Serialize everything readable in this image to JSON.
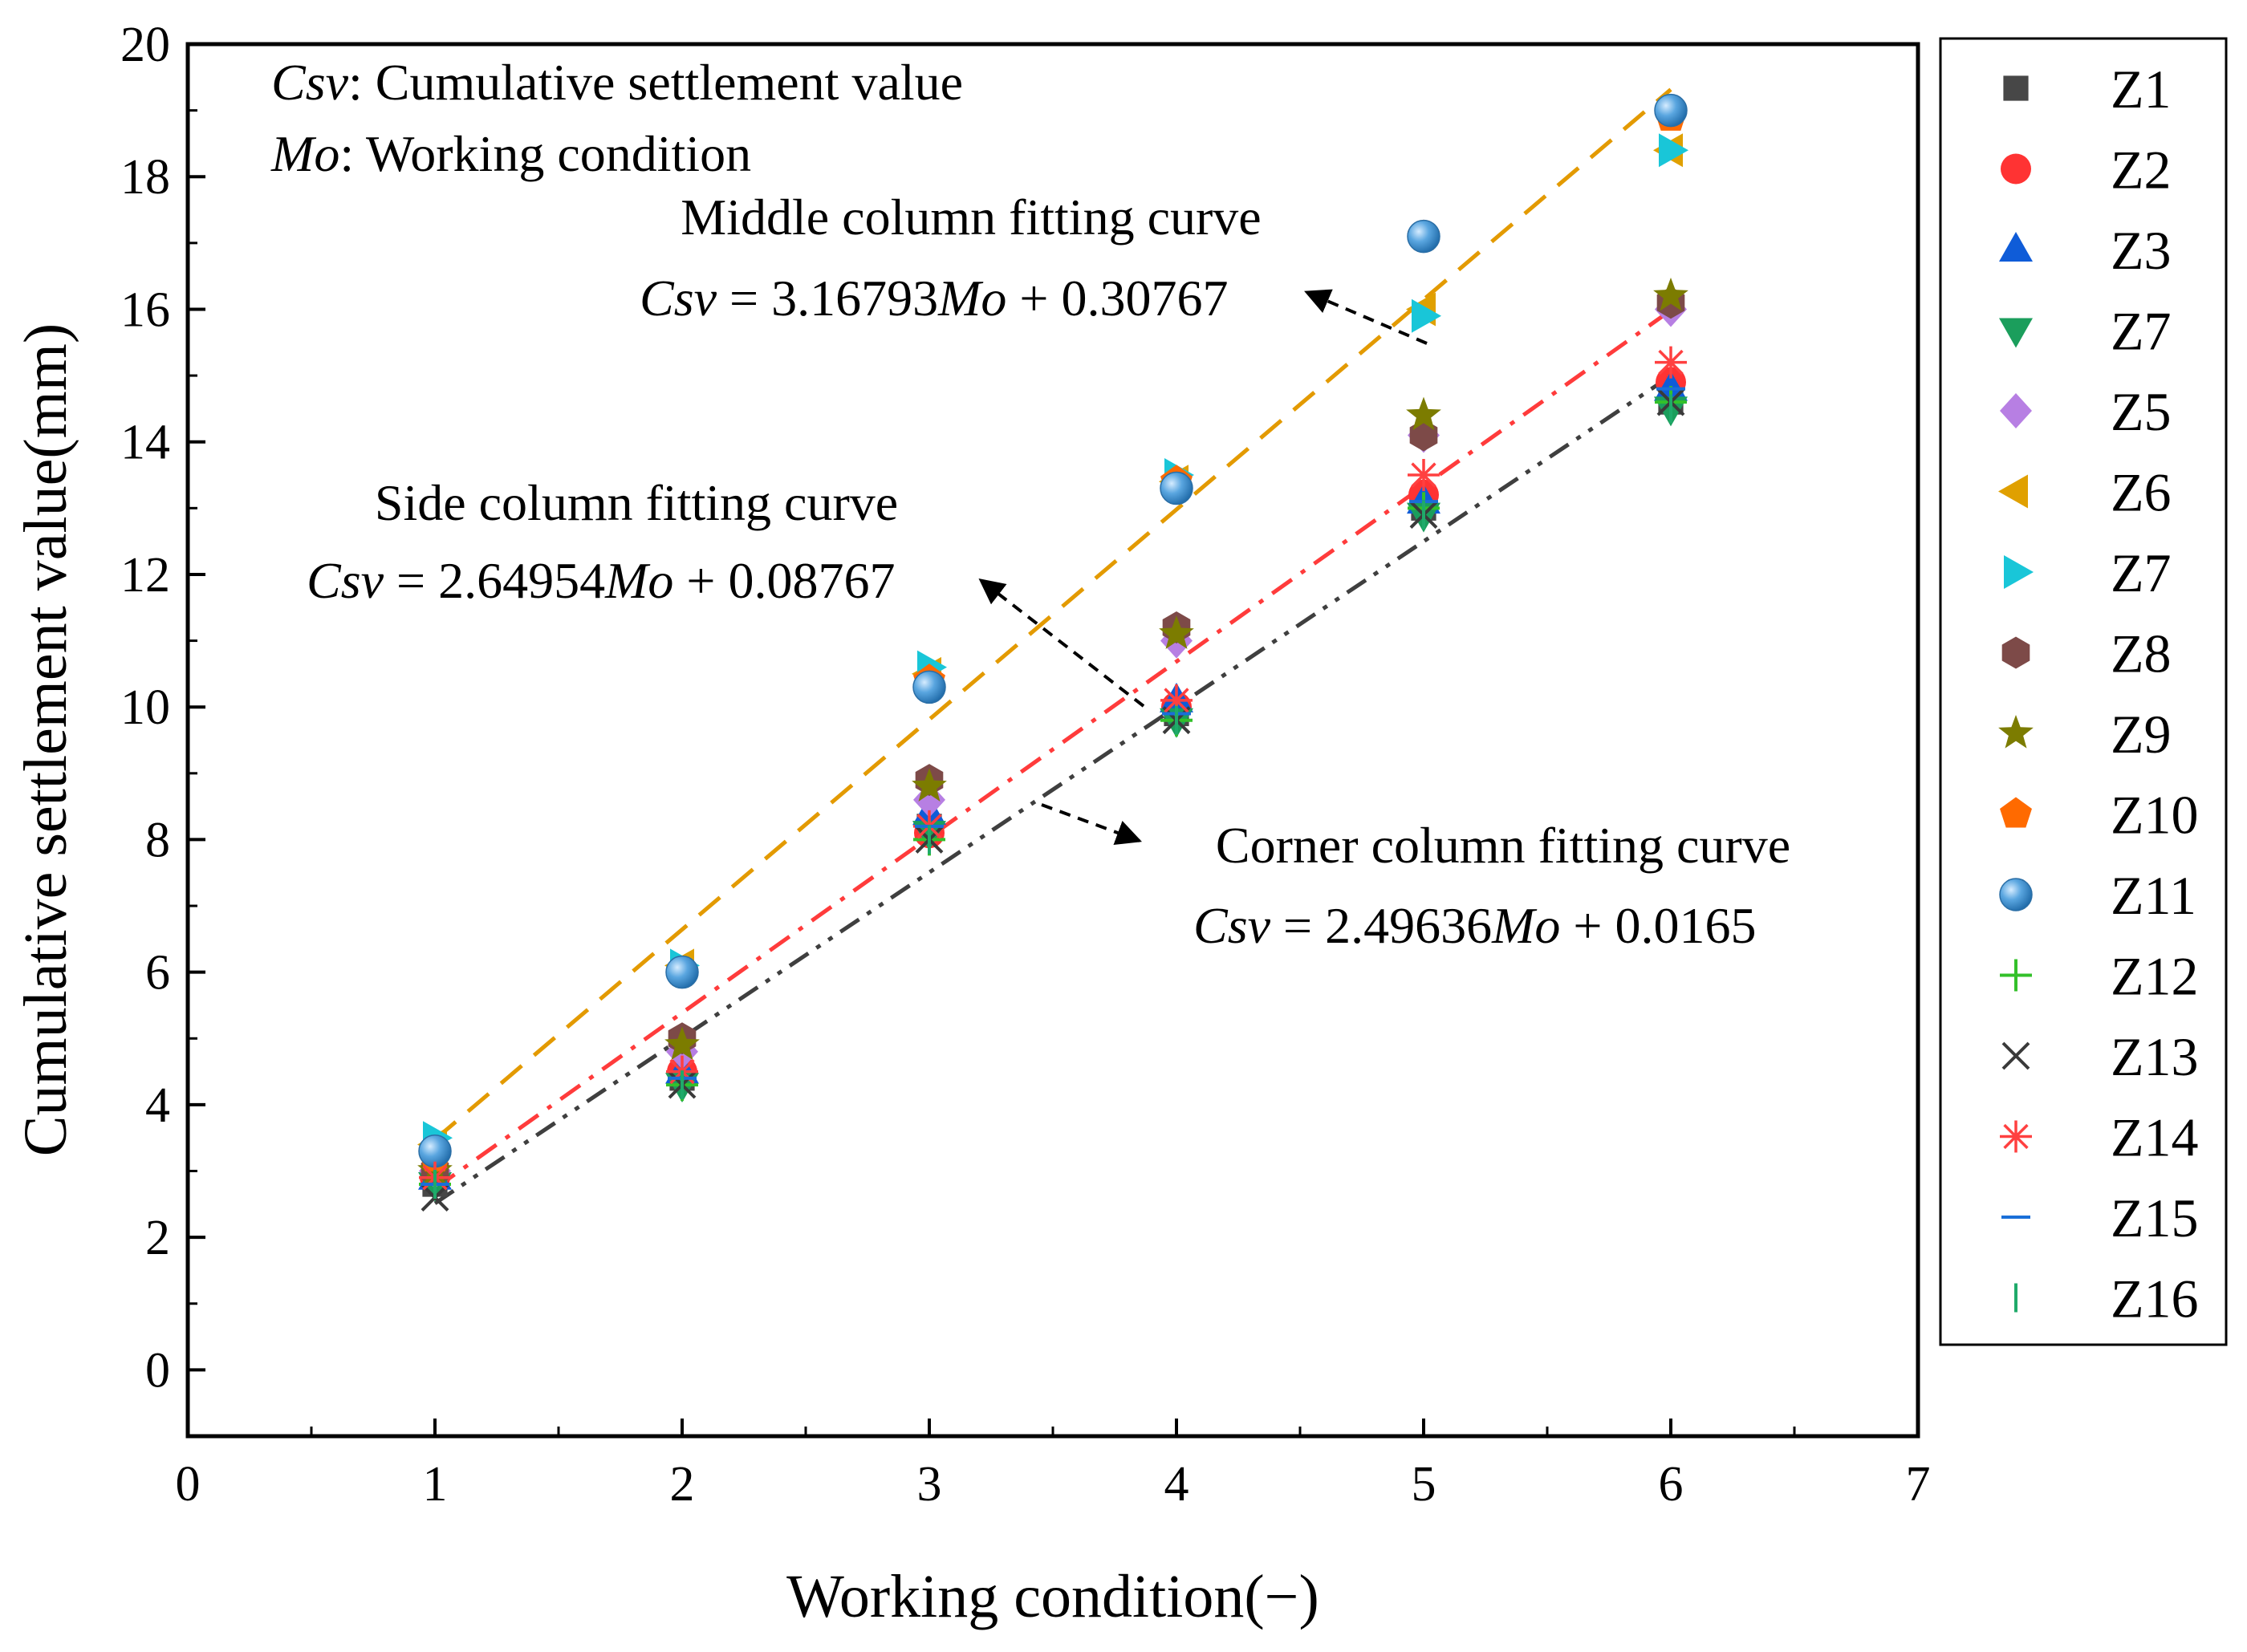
{
  "chart_data": {
    "type": "scatter",
    "title": "",
    "xlabel": "Working condition(−)",
    "ylabel": "Cumulative settlement value(mm)",
    "xlim": [
      0,
      7
    ],
    "ylim": [
      -1,
      20
    ],
    "x_ticks": [
      0,
      1,
      2,
      3,
      4,
      5,
      6,
      7
    ],
    "y_ticks": [
      0,
      2,
      4,
      6,
      8,
      10,
      12,
      14,
      16,
      18,
      20
    ],
    "x_tick_labels": [
      "0",
      "1",
      "2",
      "3",
      "4",
      "5",
      "6",
      "7"
    ],
    "y_tick_labels": [
      "0",
      "2",
      "4",
      "6",
      "8",
      "10",
      "12",
      "14",
      "16",
      "18",
      "20"
    ],
    "grid": false,
    "legend_position": "outside-right",
    "x": [
      1,
      2,
      3,
      4,
      5,
      6
    ],
    "series": [
      {
        "name": "Z1",
        "marker": "square",
        "color": "#474747",
        "values": [
          2.8,
          4.4,
          8.2,
          9.9,
          13.0,
          14.6
        ]
      },
      {
        "name": "Z2",
        "marker": "circle",
        "color": "#ff3333",
        "values": [
          2.9,
          4.5,
          8.1,
          10.0,
          13.2,
          14.9
        ]
      },
      {
        "name": "Z3",
        "marker": "triangle-up",
        "color": "#0f5cd8",
        "values": [
          2.9,
          4.5,
          8.4,
          10.1,
          13.1,
          14.8
        ]
      },
      {
        "name": "Z7",
        "marker": "triangle-down",
        "color": "#1b9e5c",
        "values": [
          2.8,
          4.3,
          8.1,
          9.8,
          12.9,
          14.5
        ]
      },
      {
        "name": "Z5",
        "marker": "diamond",
        "color": "#b77fe3",
        "values": [
          3.0,
          4.8,
          8.6,
          11.0,
          14.1,
          16.0
        ]
      },
      {
        "name": "Z6",
        "marker": "triangle-left",
        "color": "#e0a000",
        "values": [
          3.4,
          6.1,
          10.5,
          13.4,
          16.0,
          18.4
        ]
      },
      {
        "name": "Z7",
        "marker": "triangle-right",
        "color": "#19c6d8",
        "values": [
          3.5,
          6.1,
          10.6,
          13.5,
          15.9,
          18.4
        ]
      },
      {
        "name": "Z8",
        "marker": "hexagon",
        "color": "#7d4a48",
        "values": [
          3.0,
          5.0,
          8.9,
          11.2,
          14.1,
          16.1
        ]
      },
      {
        "name": "Z9",
        "marker": "star",
        "color": "#7c7c00",
        "values": [
          3.0,
          4.9,
          8.8,
          11.1,
          14.4,
          16.2
        ]
      },
      {
        "name": "Z10",
        "marker": "pentagon",
        "color": "#ff6a00",
        "values": [
          3.2,
          6.0,
          10.4,
          13.4,
          17.1,
          18.9
        ]
      },
      {
        "name": "Z11",
        "marker": "sphere",
        "color": "#3b8fd0",
        "values": [
          3.3,
          6.0,
          10.3,
          13.3,
          17.1,
          19.0
        ]
      },
      {
        "name": "Z12",
        "marker": "plus",
        "color": "#33c02a",
        "values": [
          2.8,
          4.3,
          8.0,
          9.8,
          13.0,
          14.6
        ]
      },
      {
        "name": "Z13",
        "marker": "cross",
        "color": "#3a3a3a",
        "values": [
          2.6,
          4.3,
          8.0,
          9.8,
          12.9,
          14.6
        ]
      },
      {
        "name": "Z14",
        "marker": "asterisk",
        "color": "#ff4040",
        "values": [
          2.9,
          4.5,
          8.2,
          10.1,
          13.5,
          15.2
        ]
      },
      {
        "name": "Z15",
        "marker": "hline",
        "color": "#1a6fd8",
        "values": [
          2.8,
          4.4,
          8.2,
          9.9,
          13.1,
          14.8
        ]
      },
      {
        "name": "Z16",
        "marker": "vline",
        "color": "#1faa6a",
        "values": [
          2.8,
          4.3,
          8.0,
          9.8,
          12.9,
          14.5
        ]
      }
    ],
    "fits": [
      {
        "name": "Middle column fitting curve",
        "slope": 3.16793,
        "intercept": 0.30767,
        "x_range": [
          1,
          6
        ],
        "color": "#e39a00",
        "style": "dash"
      },
      {
        "name": "Side column fitting curve",
        "slope": 2.64954,
        "intercept": 0.08767,
        "x_range": [
          1,
          6
        ],
        "color": "#ff3b3b",
        "style": "dashdot"
      },
      {
        "name": "Corner column fitting curve",
        "slope": 2.49636,
        "intercept": 0.0165,
        "x_range": [
          1,
          6
        ],
        "color": "#3f3f3f",
        "style": "dashdotdot"
      }
    ],
    "annotations": {
      "csv_def_var": "Csv",
      "csv_def_text": ": Cumulative settlement value",
      "mo_def_var": "Mo",
      "mo_def_text": ": Working condition",
      "middle_title": "Middle column fitting curve",
      "middle_eq_lhs": "Csv",
      "middle_eq_mid": " = 3.16793",
      "middle_eq_var": "Mo",
      "middle_eq_rhs": " + 0.30767",
      "side_title": "Side column fitting curve",
      "side_eq_lhs": "Csv",
      "side_eq_mid": " = 2.64954",
      "side_eq_var": "Mo",
      "side_eq_rhs": " + 0.08767",
      "corner_title": "Corner column fitting curve",
      "corner_eq_lhs": "Csv",
      "corner_eq_mid": " = 2.49636",
      "corner_eq_var": "Mo",
      "corner_eq_rhs": " + 0.0165"
    }
  }
}
